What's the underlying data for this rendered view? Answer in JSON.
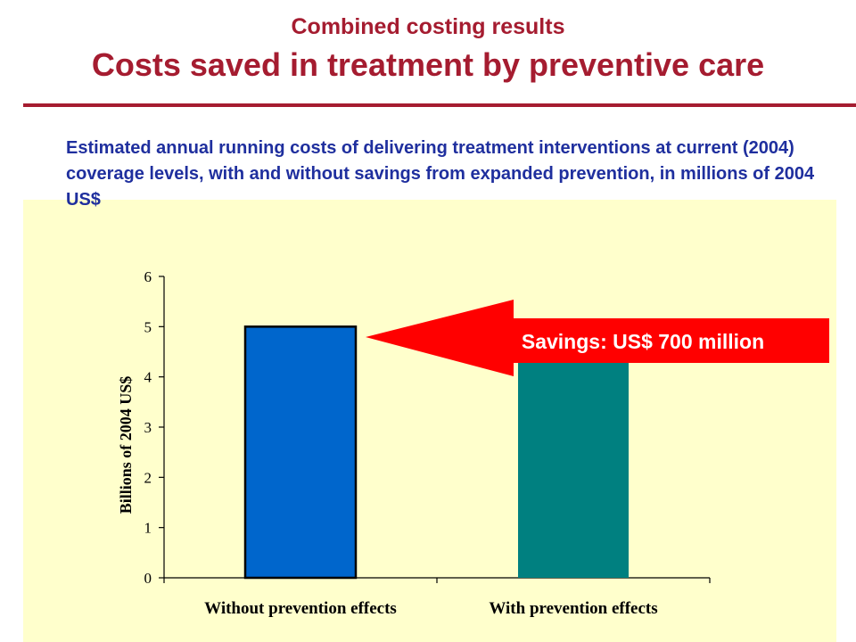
{
  "slide": {
    "subtitle": "Combined costing results",
    "title": "Costs saved in treatment by preventive care",
    "description": "Estimated annual running costs of delivering treatment interventions at current (2004) coverage levels, with and without savings from expanded prevention, in millions of 2004 US$"
  },
  "callout": {
    "text": "Savings: US$ 700 million",
    "color": "#ff0000"
  },
  "colors": {
    "title": "#a51c30",
    "description": "#1f2f9e",
    "panel": "#ffffcc"
  },
  "chart_data": {
    "type": "bar",
    "categories": [
      "Without prevention effects",
      "With prevention effects"
    ],
    "values": [
      5.0,
      4.3
    ],
    "bar_colors": [
      "#0066cc",
      "#008080"
    ],
    "ylabel": "Billions of 2004 US$",
    "ylim": [
      0,
      6
    ],
    "yticks": [
      0,
      1,
      2,
      3,
      4,
      5,
      6
    ],
    "grid": false,
    "legend": "none"
  }
}
